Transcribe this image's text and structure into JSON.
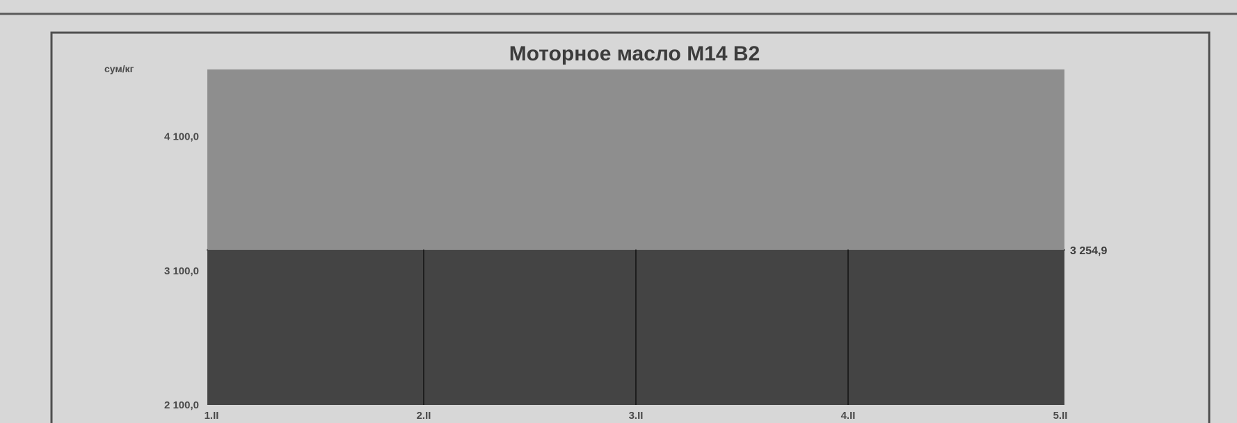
{
  "chart_data": {
    "type": "area",
    "title": "Моторное масло М14 В2",
    "ylabel": "сум/кг",
    "xlabel": "",
    "x": [
      "1.II",
      "2.II",
      "3.II",
      "4.II",
      "5.II"
    ],
    "series": [
      {
        "values": [
          3254.9,
          3254.9,
          3254.9,
          3254.9,
          3254.9
        ]
      }
    ],
    "last_value_label": "3 254,9",
    "ylim": [
      2100,
      4600
    ],
    "yticks": [
      2100,
      3100,
      4100
    ],
    "ytick_labels": [
      "2 100,0",
      "3 100,0",
      "4 100,0"
    ],
    "grid": false,
    "legend": "none",
    "colors": {
      "background": "#d7d7d7",
      "plot_area": "#8e8e8e",
      "area_fill": "#444444",
      "frame": "#555555",
      "drop_lines": "#1e1e1e"
    }
  }
}
